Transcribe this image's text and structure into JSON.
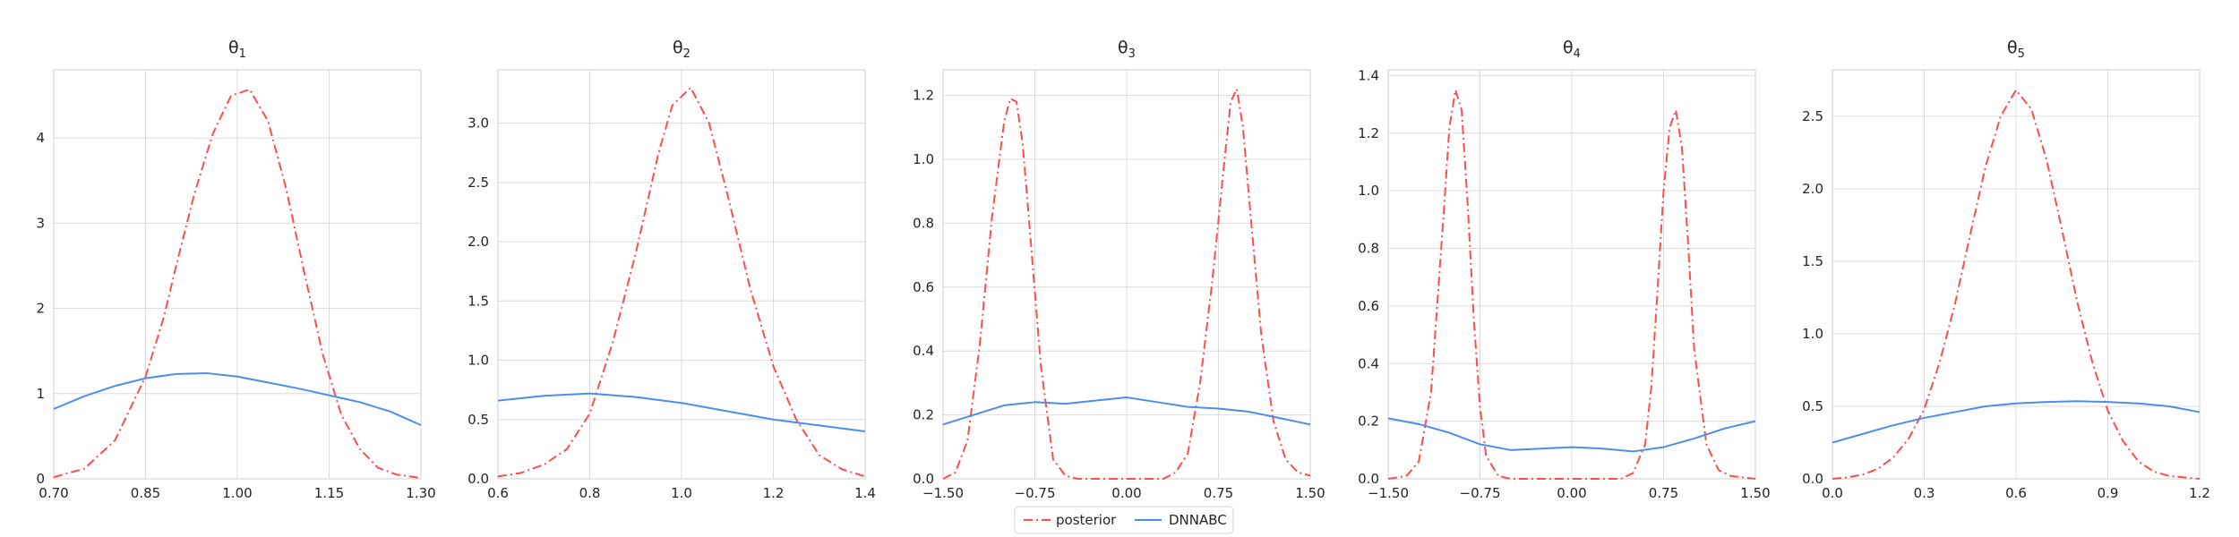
{
  "legend": {
    "items": [
      {
        "label": "posterior",
        "color": "#ff4d4d",
        "dash": "dashdot"
      },
      {
        "label": "DNNABC",
        "color": "#4a8ff0",
        "dash": "solid"
      }
    ]
  },
  "chart_data": [
    {
      "type": "line",
      "title_base": "θ",
      "title_sub": "1",
      "xlim": [
        0.7,
        1.3
      ],
      "ylim": [
        0,
        4.8
      ],
      "xticks": [
        0.7,
        0.85,
        1.0,
        1.15,
        1.3
      ],
      "xtick_labels": [
        "0.70",
        "0.85",
        "1.00",
        "1.15",
        "1.30"
      ],
      "yticks": [
        0,
        1,
        2,
        3,
        4
      ],
      "ytick_labels": [
        "0",
        "1",
        "2",
        "3",
        "4"
      ],
      "grid": true,
      "series": [
        {
          "name": "posterior",
          "x": [
            0.7,
            0.75,
            0.8,
            0.85,
            0.88,
            0.9,
            0.93,
            0.96,
            0.99,
            1.0,
            1.02,
            1.05,
            1.08,
            1.11,
            1.14,
            1.17,
            1.2,
            1.23,
            1.26,
            1.3
          ],
          "y": [
            0.02,
            0.12,
            0.45,
            1.2,
            1.9,
            2.5,
            3.35,
            4.05,
            4.5,
            4.52,
            4.57,
            4.2,
            3.4,
            2.4,
            1.45,
            0.75,
            0.35,
            0.13,
            0.05,
            0.01
          ]
        },
        {
          "name": "DNNABC",
          "x": [
            0.7,
            0.75,
            0.8,
            0.85,
            0.9,
            0.95,
            1.0,
            1.05,
            1.1,
            1.15,
            1.2,
            1.25,
            1.3
          ],
          "y": [
            0.82,
            0.97,
            1.09,
            1.18,
            1.23,
            1.24,
            1.2,
            1.13,
            1.06,
            0.98,
            0.9,
            0.79,
            0.63
          ]
        }
      ]
    },
    {
      "type": "line",
      "title_base": "θ",
      "title_sub": "2",
      "xlim": [
        0.6,
        1.4
      ],
      "ylim": [
        0,
        3.45
      ],
      "xticks": [
        0.6,
        0.8,
        1.0,
        1.2,
        1.4
      ],
      "xtick_labels": [
        "0.6",
        "0.8",
        "1.0",
        "1.2",
        "1.4"
      ],
      "yticks": [
        0,
        0.5,
        1.0,
        1.5,
        2.0,
        2.5,
        3.0
      ],
      "ytick_labels": [
        "0.0",
        "0.5",
        "1.0",
        "1.5",
        "2.0",
        "2.5",
        "3.0"
      ],
      "grid": true,
      "series": [
        {
          "name": "posterior",
          "x": [
            0.6,
            0.65,
            0.7,
            0.75,
            0.8,
            0.85,
            0.9,
            0.95,
            0.98,
            1.02,
            1.06,
            1.1,
            1.15,
            1.2,
            1.25,
            1.3,
            1.35,
            1.4
          ],
          "y": [
            0.02,
            0.05,
            0.12,
            0.25,
            0.55,
            1.15,
            1.9,
            2.75,
            3.15,
            3.3,
            3.0,
            2.4,
            1.6,
            0.95,
            0.5,
            0.2,
            0.08,
            0.02
          ]
        },
        {
          "name": "DNNABC",
          "x": [
            0.6,
            0.7,
            0.8,
            0.9,
            1.0,
            1.1,
            1.2,
            1.3,
            1.4
          ],
          "y": [
            0.66,
            0.7,
            0.72,
            0.69,
            0.64,
            0.57,
            0.5,
            0.45,
            0.4
          ]
        }
      ]
    },
    {
      "type": "line",
      "title_base": "θ",
      "title_sub": "3",
      "xlim": [
        -1.5,
        1.5
      ],
      "ylim": [
        0,
        1.28
      ],
      "xticks": [
        -1.5,
        -0.75,
        0.0,
        0.75,
        1.5
      ],
      "xtick_labels": [
        "−1.50",
        "−0.75",
        "0.00",
        "0.75",
        "1.50"
      ],
      "yticks": [
        0,
        0.2,
        0.4,
        0.6,
        0.8,
        1.0,
        1.2
      ],
      "ytick_labels": [
        "0.0",
        "0.2",
        "0.4",
        "0.6",
        "0.8",
        "1.0",
        "1.2"
      ],
      "grid": true,
      "series": [
        {
          "name": "posterior",
          "x": [
            -1.5,
            -1.4,
            -1.3,
            -1.2,
            -1.1,
            -1.0,
            -0.95,
            -0.9,
            -0.85,
            -0.8,
            -0.7,
            -0.6,
            -0.5,
            -0.4,
            -0.3,
            0.0,
            0.3,
            0.4,
            0.5,
            0.6,
            0.7,
            0.8,
            0.85,
            0.9,
            0.95,
            1.0,
            1.1,
            1.2,
            1.3,
            1.4,
            1.5
          ],
          "y": [
            0.0,
            0.02,
            0.12,
            0.42,
            0.82,
            1.12,
            1.19,
            1.18,
            1.05,
            0.82,
            0.35,
            0.06,
            0.01,
            0.0,
            0.0,
            0.0,
            0.0,
            0.02,
            0.08,
            0.3,
            0.62,
            1.0,
            1.18,
            1.22,
            1.1,
            0.88,
            0.45,
            0.18,
            0.06,
            0.02,
            0.01
          ]
        },
        {
          "name": "DNNABC",
          "x": [
            -1.5,
            -1.25,
            -1.0,
            -0.75,
            -0.5,
            -0.25,
            0.0,
            0.25,
            0.5,
            0.75,
            1.0,
            1.25,
            1.5
          ],
          "y": [
            0.17,
            0.2,
            0.23,
            0.24,
            0.235,
            0.245,
            0.255,
            0.24,
            0.225,
            0.22,
            0.21,
            0.19,
            0.17
          ]
        }
      ]
    },
    {
      "type": "line",
      "title_base": "θ",
      "title_sub": "4",
      "xlim": [
        -1.5,
        1.5
      ],
      "ylim": [
        0,
        1.42
      ],
      "xticks": [
        -1.5,
        -0.75,
        0.0,
        0.75,
        1.5
      ],
      "xtick_labels": [
        "−1.50",
        "−0.75",
        "0.00",
        "0.75",
        "1.50"
      ],
      "yticks": [
        0,
        0.2,
        0.4,
        0.6,
        0.8,
        1.0,
        1.2,
        1.4
      ],
      "ytick_labels": [
        "0.0",
        "0.2",
        "0.4",
        "0.6",
        "0.8",
        "1.0",
        "1.2",
        "1.4"
      ],
      "grid": true,
      "series": [
        {
          "name": "posterior",
          "x": [
            -1.5,
            -1.35,
            -1.25,
            -1.15,
            -1.05,
            -1.0,
            -0.95,
            -0.9,
            -0.85,
            -0.8,
            -0.75,
            -0.7,
            -0.6,
            -0.5,
            0.0,
            0.4,
            0.5,
            0.6,
            0.65,
            0.7,
            0.75,
            0.8,
            0.85,
            0.9,
            0.95,
            1.0,
            1.1,
            1.2,
            1.3,
            1.5
          ],
          "y": [
            0.0,
            0.01,
            0.06,
            0.3,
            0.9,
            1.22,
            1.35,
            1.28,
            0.95,
            0.55,
            0.25,
            0.08,
            0.01,
            0.0,
            0.0,
            0.0,
            0.02,
            0.12,
            0.32,
            0.65,
            1.0,
            1.22,
            1.28,
            1.15,
            0.82,
            0.45,
            0.12,
            0.03,
            0.01,
            0.0
          ]
        },
        {
          "name": "DNNABC",
          "x": [
            -1.5,
            -1.25,
            -1.0,
            -0.75,
            -0.5,
            -0.25,
            0.0,
            0.25,
            0.5,
            0.75,
            1.0,
            1.25,
            1.5
          ],
          "y": [
            0.21,
            0.19,
            0.16,
            0.12,
            0.1,
            0.105,
            0.11,
            0.105,
            0.095,
            0.11,
            0.14,
            0.175,
            0.2
          ]
        }
      ]
    },
    {
      "type": "line",
      "title_base": "θ",
      "title_sub": "5",
      "xlim": [
        0.0,
        1.2
      ],
      "ylim": [
        0,
        2.82
      ],
      "xticks": [
        0.0,
        0.3,
        0.6,
        0.9,
        1.2
      ],
      "xtick_labels": [
        "0.0",
        "0.3",
        "0.6",
        "0.9",
        "1.2"
      ],
      "yticks": [
        0,
        0.5,
        1.0,
        1.5,
        2.0,
        2.5
      ],
      "ytick_labels": [
        "0.0",
        "0.5",
        "1.0",
        "1.5",
        "2.0",
        "2.5"
      ],
      "grid": true,
      "series": [
        {
          "name": "posterior",
          "x": [
            0.0,
            0.05,
            0.1,
            0.15,
            0.2,
            0.25,
            0.3,
            0.35,
            0.4,
            0.45,
            0.5,
            0.55,
            0.6,
            0.65,
            0.7,
            0.75,
            0.8,
            0.85,
            0.9,
            0.95,
            1.0,
            1.05,
            1.1,
            1.15,
            1.2
          ],
          "y": [
            0.0,
            0.01,
            0.03,
            0.07,
            0.15,
            0.28,
            0.48,
            0.8,
            1.2,
            1.68,
            2.15,
            2.5,
            2.68,
            2.55,
            2.2,
            1.72,
            1.22,
            0.8,
            0.47,
            0.26,
            0.12,
            0.05,
            0.02,
            0.01,
            0.0
          ]
        },
        {
          "name": "DNNABC",
          "x": [
            0.0,
            0.1,
            0.2,
            0.3,
            0.4,
            0.5,
            0.6,
            0.7,
            0.8,
            0.9,
            1.0,
            1.1,
            1.2
          ],
          "y": [
            0.25,
            0.31,
            0.37,
            0.42,
            0.46,
            0.5,
            0.52,
            0.53,
            0.535,
            0.53,
            0.52,
            0.5,
            0.46
          ]
        }
      ]
    }
  ]
}
